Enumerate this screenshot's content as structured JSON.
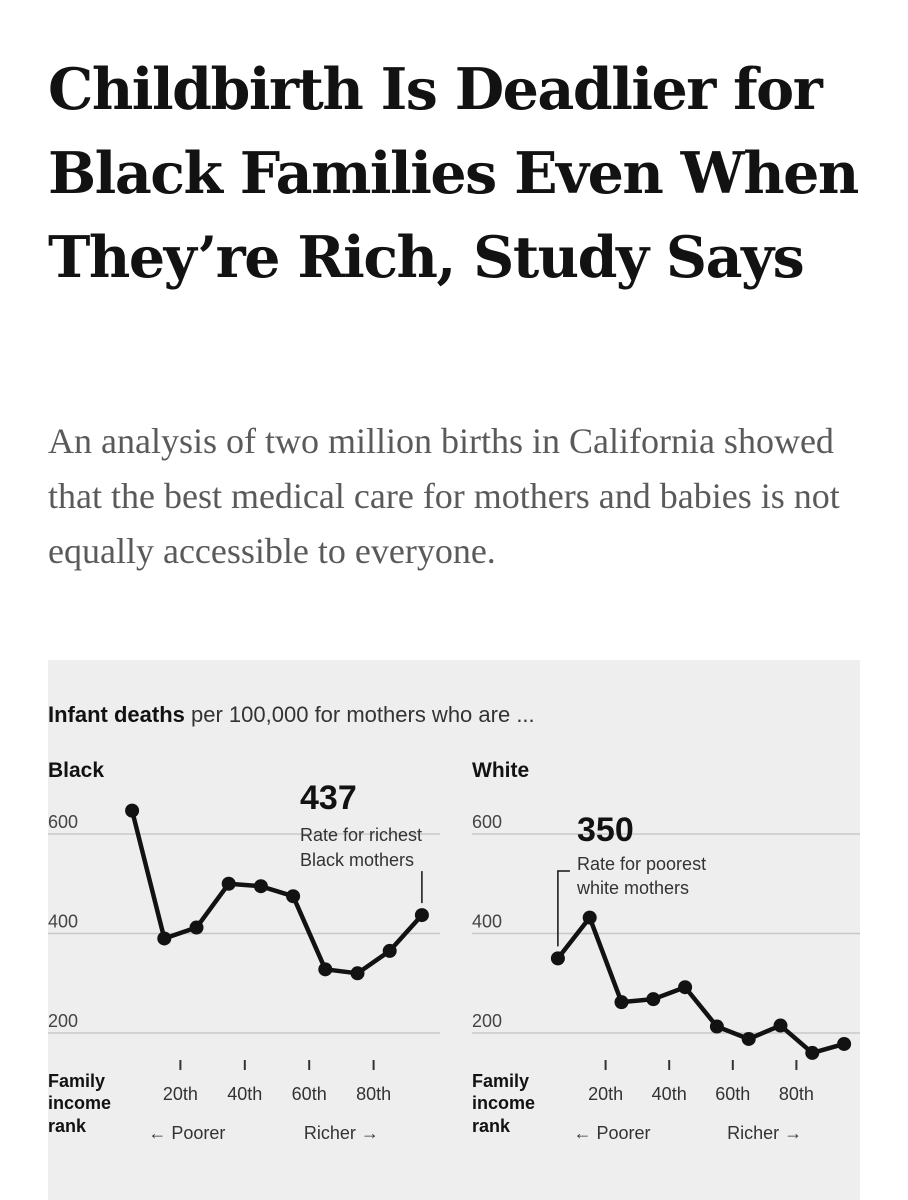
{
  "article": {
    "headline": "Childbirth Is Deadlier for Black Families Even When They’re Rich, Study Says",
    "summary": "An analysis of two million births in California showed that the best medical care for mothers and babies is not equally accessible to everyone."
  },
  "chart": {
    "title_bold": "Infant deaths",
    "title_rest": " per 100,000 for mothers who are ...",
    "rank_label_line1": "Family",
    "rank_label_line2": "income",
    "rank_label_line3": "rank",
    "poorer_label": "← Poorer",
    "richer_label": "Richer →"
  },
  "chart_data": [
    {
      "type": "line",
      "title": "Black",
      "xlabel": "Family income rank",
      "ylim": [
        150,
        680
      ],
      "y_ticks": [
        200,
        400,
        600
      ],
      "x_ticks": [
        20,
        40,
        60,
        80
      ],
      "x_tick_labels": [
        "20th",
        "40th",
        "60th",
        "80th"
      ],
      "annotation": {
        "value": "437",
        "text_line1": "Rate for richest",
        "text_line2": "Black mothers"
      },
      "points": [
        {
          "x": 5,
          "y": 647
        },
        {
          "x": 15,
          "y": 390
        },
        {
          "x": 25,
          "y": 412
        },
        {
          "x": 35,
          "y": 500
        },
        {
          "x": 45,
          "y": 495
        },
        {
          "x": 55,
          "y": 475
        },
        {
          "x": 65,
          "y": 328
        },
        {
          "x": 75,
          "y": 320
        },
        {
          "x": 85,
          "y": 365
        },
        {
          "x": 95,
          "y": 437
        }
      ]
    },
    {
      "type": "line",
      "title": "White",
      "xlabel": "Family income rank",
      "ylim": [
        150,
        680
      ],
      "y_ticks": [
        200,
        400,
        600
      ],
      "x_ticks": [
        20,
        40,
        60,
        80
      ],
      "x_tick_labels": [
        "20th",
        "40th",
        "60th",
        "80th"
      ],
      "annotation": {
        "value": "350",
        "text_line1": "Rate for poorest",
        "text_line2": "white mothers"
      },
      "points": [
        {
          "x": 5,
          "y": 350
        },
        {
          "x": 15,
          "y": 432
        },
        {
          "x": 25,
          "y": 262
        },
        {
          "x": 35,
          "y": 268
        },
        {
          "x": 45,
          "y": 292
        },
        {
          "x": 55,
          "y": 213
        },
        {
          "x": 65,
          "y": 188
        },
        {
          "x": 75,
          "y": 215
        },
        {
          "x": 85,
          "y": 160
        },
        {
          "x": 95,
          "y": 178
        }
      ]
    }
  ]
}
